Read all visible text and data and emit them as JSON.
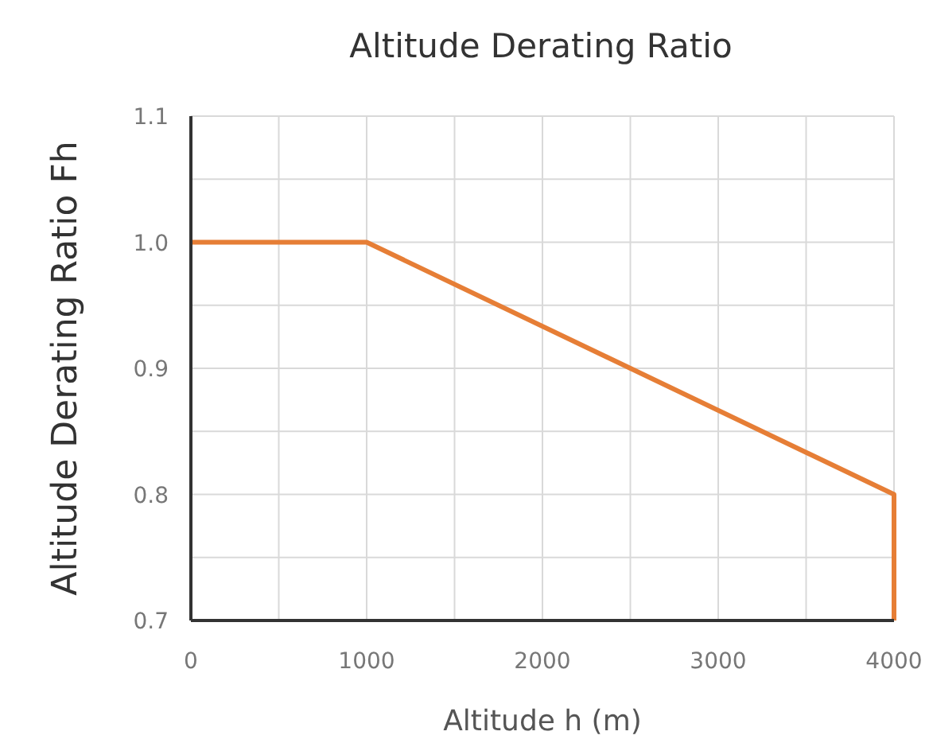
{
  "chart_data": {
    "type": "line",
    "title": "Altitude Derating Ratio",
    "xlabel": "Altitude h (m)",
    "ylabel": "Altitude Derating Ratio Fh",
    "x": [
      0,
      1000,
      4000,
      4000
    ],
    "series": [
      {
        "color": "#e67e36",
        "values": [
          1.0,
          1.0,
          0.8,
          0.7
        ]
      }
    ],
    "xlim": [
      0,
      4000
    ],
    "ylim": [
      0.7,
      1.1
    ],
    "xticks": [
      0,
      {
        "value": 500,
        "label": null
      },
      1000,
      {
        "value": 1500,
        "label": null
      },
      2000,
      {
        "value": 2500,
        "label": null
      },
      3000,
      {
        "value": 3500,
        "label": null
      },
      4000
    ],
    "yticks": [
      {
        "value": 0.7,
        "label": "0.7"
      },
      {
        "value": 0.75,
        "label": null
      },
      {
        "value": 0.8,
        "label": "0.8"
      },
      {
        "value": 0.85,
        "label": null
      },
      {
        "value": 0.9,
        "label": "0.9"
      },
      {
        "value": 0.95,
        "label": null
      },
      {
        "value": 1.0,
        "label": "1.0"
      },
      {
        "value": 1.05,
        "label": null
      },
      {
        "value": 1.1,
        "label": "1.1"
      }
    ],
    "grid": true,
    "marker": "none",
    "line_style": "solid"
  }
}
